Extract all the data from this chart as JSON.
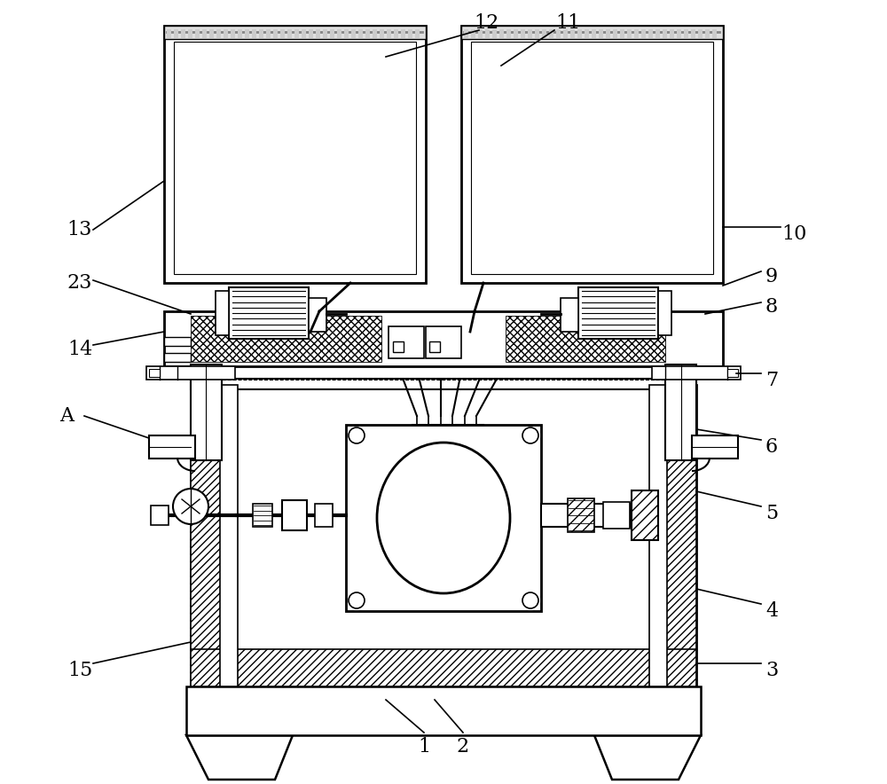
{
  "fig_width": 10.0,
  "fig_height": 8.84,
  "dpi": 100,
  "bg_color": "#ffffff",
  "lc": "#000000"
}
